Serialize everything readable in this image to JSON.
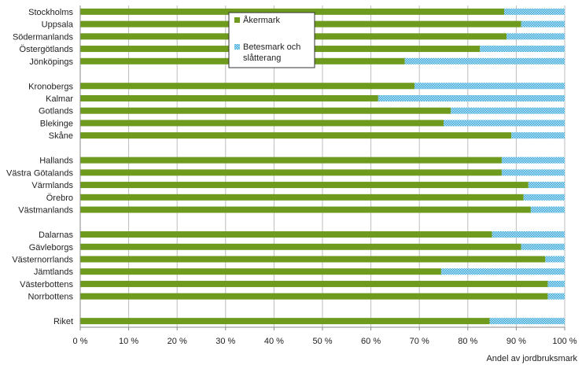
{
  "chart_data": {
    "type": "bar",
    "orientation": "horizontal",
    "stacked": true,
    "xlabel": "Andel av jordbruksmark",
    "xlim": [
      0,
      100
    ],
    "x_ticks": [
      0,
      10,
      20,
      30,
      40,
      50,
      60,
      70,
      80,
      90,
      100
    ],
    "x_tick_labels": [
      "0 %",
      "10 %",
      "20 %",
      "30 %",
      "40 %",
      "50 %",
      "60 %",
      "70 %",
      "80 %",
      "90 %",
      "100 %"
    ],
    "grid": "vertical",
    "legend_position": "top-center",
    "groups": [
      [
        "Stockholms",
        "Uppsala",
        "Södermanlands",
        "Östergötlands",
        "Jönköpings"
      ],
      [
        "Kronobergs",
        "Kalmar",
        "Gotlands",
        "Blekinge",
        "Skåne"
      ],
      [
        "Hallands",
        "Västra Götalands",
        "Värmlands",
        "Örebro",
        "Västmanlands"
      ],
      [
        "Dalarnas",
        "Gävleborgs",
        "Västernorrlands",
        "Jämtlands",
        "Västerbottens",
        "Norrbottens"
      ],
      [
        "Riket"
      ]
    ],
    "categories": [
      "Stockholms",
      "Uppsala",
      "Södermanlands",
      "Östergötlands",
      "Jönköpings",
      "Kronobergs",
      "Kalmar",
      "Gotlands",
      "Blekinge",
      "Skåne",
      "Hallands",
      "Västra Götalands",
      "Värmlands",
      "Örebro",
      "Västmanlands",
      "Dalarnas",
      "Gävleborgs",
      "Västernorrlands",
      "Jämtlands",
      "Västerbottens",
      "Norrbottens",
      "Riket"
    ],
    "series": [
      {
        "name": "Åkermark",
        "color": "#6e9a1e",
        "values": [
          87.5,
          91,
          88,
          82.5,
          67,
          69,
          61.5,
          76.5,
          75,
          89,
          87,
          87,
          92.5,
          91.5,
          93,
          85,
          91,
          96,
          74.5,
          96.5,
          96.5,
          84.5
        ]
      },
      {
        "name": "Betesmark och slåtterang",
        "color": "#4ab8e6",
        "pattern": "checker",
        "values": [
          12.5,
          9,
          12,
          17.5,
          33,
          31,
          38.5,
          23.5,
          25,
          11,
          13,
          13,
          7.5,
          8.5,
          7,
          15,
          9,
          4,
          25.5,
          3.5,
          3.5,
          15.5
        ]
      }
    ],
    "legend_labels": [
      {
        "series": 0,
        "lines": [
          "Åkermark"
        ]
      },
      {
        "series": 1,
        "lines": [
          "Betesmark och",
          "slåtterang"
        ]
      }
    ]
  }
}
